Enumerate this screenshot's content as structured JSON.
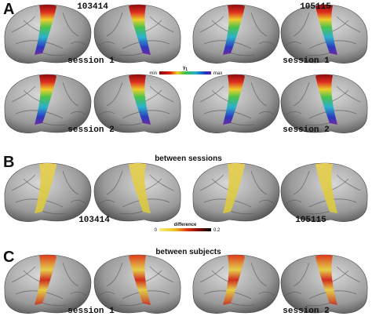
{
  "panel_a": {
    "label": "A",
    "subjects": [
      "103414",
      "105115"
    ],
    "row_1_labels": [
      "session 1",
      "session 1"
    ],
    "row_2_labels": [
      "session 2",
      "session 2"
    ],
    "colorbar": {
      "title": "γ",
      "title_sub": "1",
      "min": "min",
      "max": "max"
    }
  },
  "panel_b": {
    "label": "B",
    "title": "between sessions",
    "subjects": [
      "103414",
      "105115"
    ],
    "colorbar": {
      "title": "difference",
      "min": "0",
      "max": "0.2"
    }
  },
  "panel_c": {
    "label": "C",
    "title": "between subjects",
    "session_labels": [
      "session 1",
      "session 2"
    ]
  }
}
